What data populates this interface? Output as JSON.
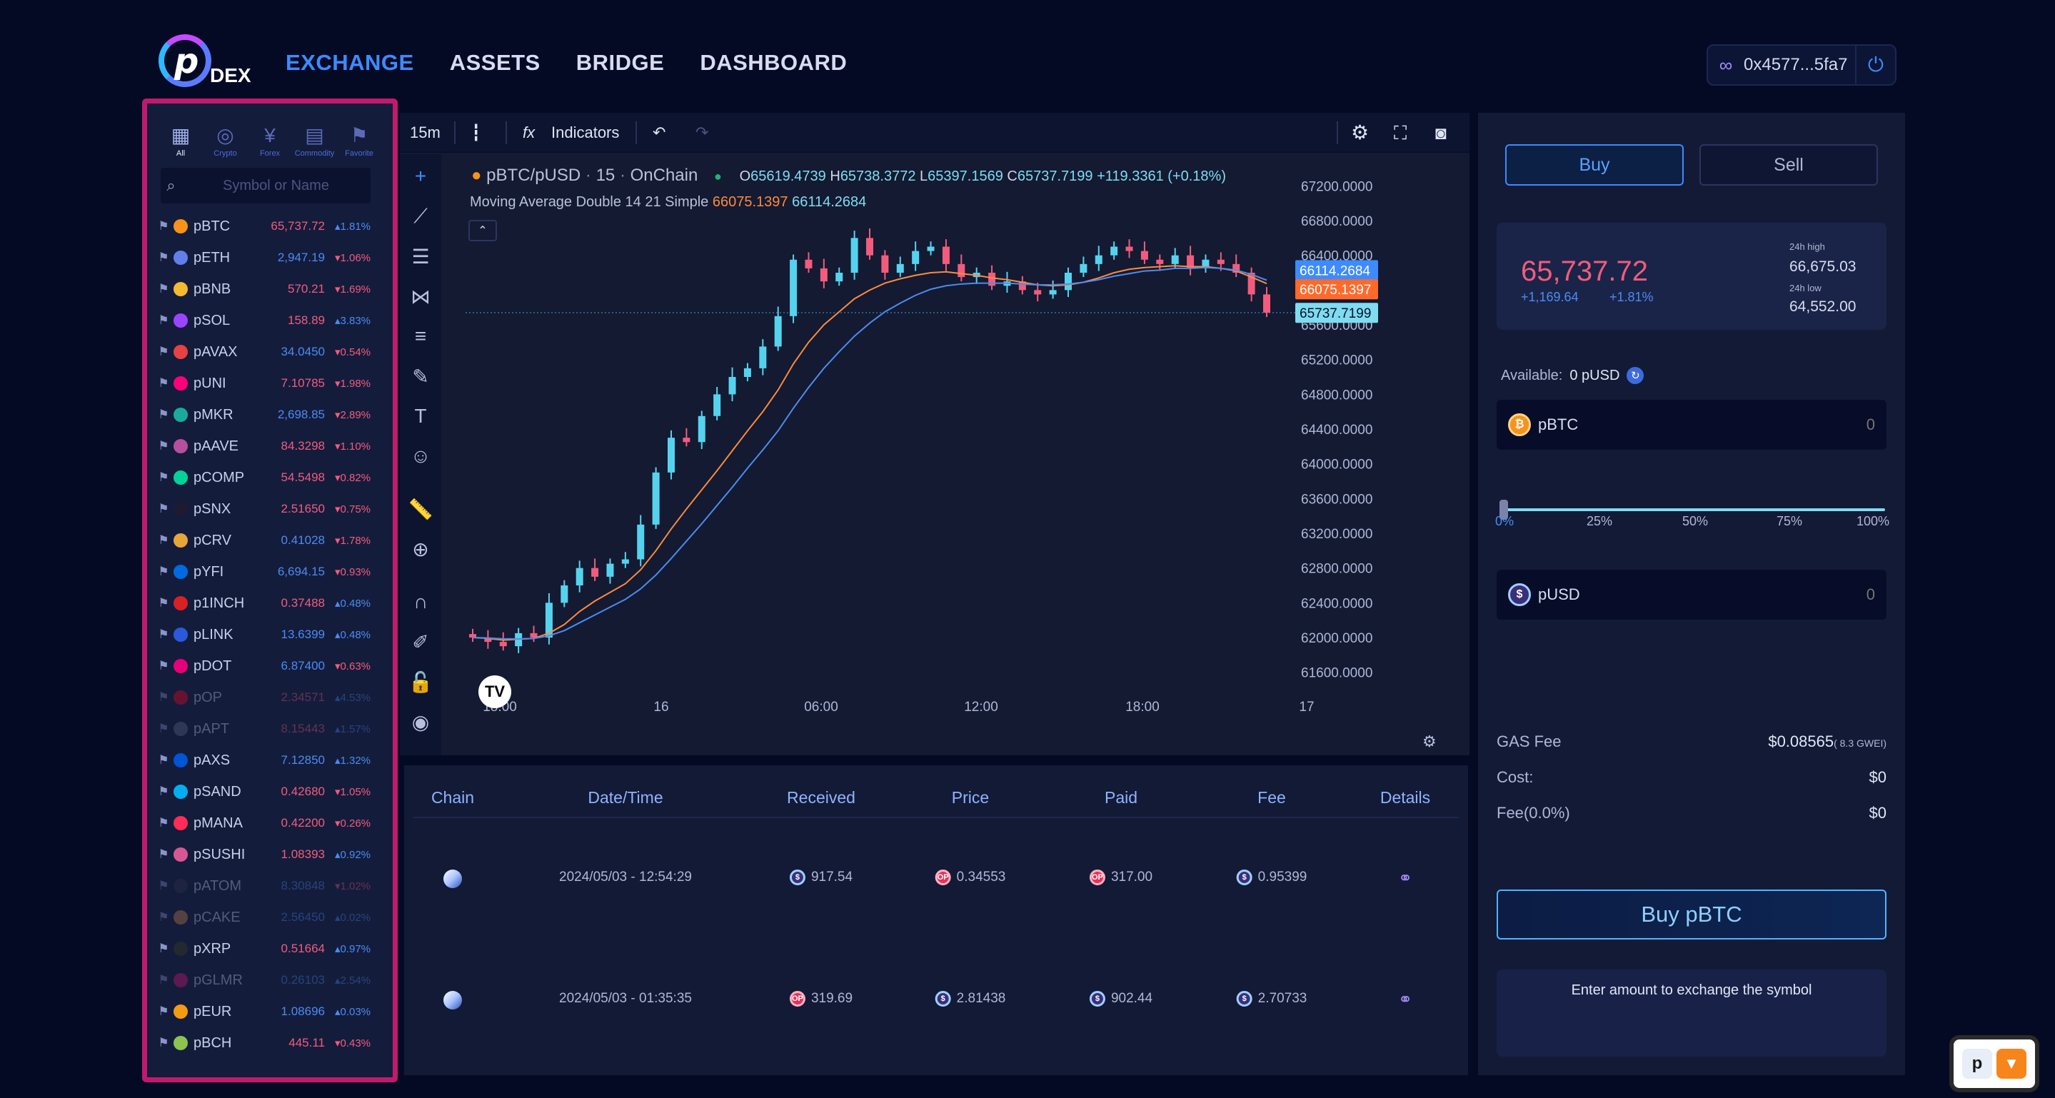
{
  "brand": {
    "logo_letter": "p",
    "logo_text": "DEX"
  },
  "nav": [
    {
      "label": "EXCHANGE",
      "active": true
    },
    {
      "label": "ASSETS",
      "active": false
    },
    {
      "label": "BRIDGE",
      "active": false
    },
    {
      "label": "DASHBOARD",
      "active": false
    }
  ],
  "wallet": {
    "address": "0x4577...5fa7",
    "icon": "link-icon",
    "power_icon": "power-icon"
  },
  "sidebar": {
    "categories": [
      {
        "label": "All",
        "icon": "grid-icon",
        "active": true
      },
      {
        "label": "Crypto",
        "icon": "coins-icon",
        "active": false
      },
      {
        "label": "Forex",
        "icon": "yen-icon",
        "active": false
      },
      {
        "label": "Commodity",
        "icon": "commodity-icon",
        "active": false
      },
      {
        "label": "Favorite",
        "icon": "bookmark-icon",
        "active": false
      }
    ],
    "search_placeholder": "Symbol or Name",
    "symbols": [
      {
        "name": "pBTC",
        "price": "65,737.72",
        "change": "▴1.81%",
        "price_color": "red",
        "change_color": "blue",
        "coin": "#f7931a",
        "dim": false
      },
      {
        "name": "pETH",
        "price": "2,947.19",
        "change": "▾1.06%",
        "price_color": "blue",
        "change_color": "red",
        "coin": "#627eea",
        "dim": false
      },
      {
        "name": "pBNB",
        "price": "570.21",
        "change": "▾1.69%",
        "price_color": "red",
        "change_color": "red",
        "coin": "#f3ba2f",
        "dim": false
      },
      {
        "name": "pSOL",
        "price": "158.89",
        "change": "▴3.83%",
        "price_color": "red",
        "change_color": "blue",
        "coin": "#9945ff",
        "dim": false
      },
      {
        "name": "pAVAX",
        "price": "34.0450",
        "change": "▾0.54%",
        "price_color": "blue",
        "change_color": "red",
        "coin": "#e84142",
        "dim": false
      },
      {
        "name": "pUNI",
        "price": "7.10785",
        "change": "▾1.98%",
        "price_color": "red",
        "change_color": "red",
        "coin": "#ff007a",
        "dim": false
      },
      {
        "name": "pMKR",
        "price": "2,698.85",
        "change": "▾2.89%",
        "price_color": "blue",
        "change_color": "red",
        "coin": "#1aab9b",
        "dim": false
      },
      {
        "name": "pAAVE",
        "price": "84.3298",
        "change": "▾1.10%",
        "price_color": "red",
        "change_color": "red",
        "coin": "#b6509e",
        "dim": false
      },
      {
        "name": "pCOMP",
        "price": "54.5498",
        "change": "▾0.82%",
        "price_color": "red",
        "change_color": "red",
        "coin": "#00d395",
        "dim": false
      },
      {
        "name": "pSNX",
        "price": "2.51650",
        "change": "▾0.75%",
        "price_color": "red",
        "change_color": "red",
        "coin": "#1e1a31",
        "dim": false
      },
      {
        "name": "pCRV",
        "price": "0.41028",
        "change": "▾1.78%",
        "price_color": "blue",
        "change_color": "red",
        "coin": "#e5a63a",
        "dim": false
      },
      {
        "name": "pYFI",
        "price": "6,694.15",
        "change": "▾0.93%",
        "price_color": "blue",
        "change_color": "red",
        "coin": "#006ae3",
        "dim": false
      },
      {
        "name": "p1INCH",
        "price": "0.37488",
        "change": "▴0.48%",
        "price_color": "red",
        "change_color": "blue",
        "coin": "#d82122",
        "dim": false
      },
      {
        "name": "pLINK",
        "price": "13.6399",
        "change": "▴0.48%",
        "price_color": "blue",
        "change_color": "blue",
        "coin": "#2a5ada",
        "dim": false
      },
      {
        "name": "pDOT",
        "price": "6.87400",
        "change": "▾0.63%",
        "price_color": "blue",
        "change_color": "red",
        "coin": "#e6007a",
        "dim": false
      },
      {
        "name": "pOP",
        "price": "2.34571",
        "change": "▴4.53%",
        "price_color": "red",
        "change_color": "blue",
        "coin": "#ff0420",
        "dim": true
      },
      {
        "name": "pAPT",
        "price": "8.15443",
        "change": "▴1.57%",
        "price_color": "red",
        "change_color": "blue",
        "coin": "#5d6d8a",
        "dim": true
      },
      {
        "name": "pAXS",
        "price": "7.12850",
        "change": "▴1.32%",
        "price_color": "blue",
        "change_color": "blue",
        "coin": "#0055d5",
        "dim": false
      },
      {
        "name": "pSAND",
        "price": "0.42680",
        "change": "▾1.05%",
        "price_color": "red",
        "change_color": "red",
        "coin": "#04adef",
        "dim": false
      },
      {
        "name": "pMANA",
        "price": "0.42200",
        "change": "▾0.26%",
        "price_color": "red",
        "change_color": "red",
        "coin": "#ff2d55",
        "dim": false
      },
      {
        "name": "pSUSHI",
        "price": "1.08393",
        "change": "▴0.92%",
        "price_color": "red",
        "change_color": "blue",
        "coin": "#d65892",
        "dim": false
      },
      {
        "name": "pATOM",
        "price": "8.30848",
        "change": "▾1.02%",
        "price_color": "blue",
        "change_color": "red",
        "coin": "#2e3148",
        "dim": true
      },
      {
        "name": "pCAKE",
        "price": "2.56450",
        "change": "▴0.02%",
        "price_color": "blue",
        "change_color": "blue",
        "coin": "#d1884f",
        "dim": true
      },
      {
        "name": "pXRP",
        "price": "0.51664",
        "change": "▴0.97%",
        "price_color": "red",
        "change_color": "blue",
        "coin": "#23292f",
        "dim": false
      },
      {
        "name": "pGLMR",
        "price": "0.26103",
        "change": "▴2.54%",
        "price_color": "blue",
        "change_color": "blue",
        "coin": "#e1147b",
        "dim": true
      },
      {
        "name": "pEUR",
        "price": "1.08696",
        "change": "▴0.03%",
        "price_color": "blue",
        "change_color": "blue",
        "coin": "#f39c12",
        "dim": false
      },
      {
        "name": "pBCH",
        "price": "445.11",
        "change": "▾0.43%",
        "price_color": "red",
        "change_color": "red",
        "coin": "#8dc351",
        "dim": false
      }
    ]
  },
  "chart_toolbar": {
    "interval": "15m",
    "indicators": "Indicators"
  },
  "chart_legend": {
    "symbol": "pBTC/pUSD",
    "interval": "15",
    "source": "OnChain",
    "open_label": "O",
    "open": "65619.4739",
    "high_label": "H",
    "high": "65738.3772",
    "low_label": "L",
    "low": "65397.1569",
    "close_label": "C",
    "close": "65737.7199",
    "change": "+119.3361 (+0.18%)",
    "ma_name": "Moving Average Double 14 21 Simple",
    "ma_value_a": "66075.1397",
    "ma_value_b": "66114.2684"
  },
  "chart_data": {
    "type": "line",
    "title": "",
    "x_tick_labels": [
      "18:00",
      "16",
      "06:00",
      "12:00",
      "18:00",
      "17"
    ],
    "y_tick_labels": [
      "67200.0000",
      "66800.0000",
      "66400.0000",
      "66000.0000",
      "65600.0000",
      "65200.0000",
      "64800.0000",
      "64400.0000",
      "64000.0000",
      "63600.0000",
      "63200.0000",
      "62800.0000",
      "62400.0000",
      "62000.0000",
      "61600.0000"
    ],
    "ylim": [
      61400,
      67400
    ],
    "price_labels": [
      "66114.2684",
      "66075.1397",
      "65737.7199"
    ],
    "series": [
      {
        "name": "",
        "color": "#55d3ee",
        "values": [
          62000,
          61950,
          61900,
          62050,
          62000,
          62400,
          62600,
          62800,
          62700,
          62850,
          62900,
          63300,
          63900,
          64300,
          64250,
          64550,
          64800,
          65000,
          65100,
          65350,
          65700,
          66350,
          66250,
          66100,
          66200,
          66600,
          66400,
          66200,
          66300,
          66450,
          66500,
          66300,
          66150,
          66200,
          66050,
          66100,
          66000,
          65950,
          66000,
          66200,
          66300,
          66400,
          66500,
          66450,
          66350,
          66300,
          66400,
          66250,
          66350,
          66300,
          66200,
          65950,
          65740
        ]
      },
      {
        "name": "",
        "color": "#ff8a3d",
        "values": [
          62000,
          61990,
          61970,
          61980,
          61990,
          62050,
          62150,
          62300,
          62420,
          62520,
          62620,
          62780,
          63000,
          63250,
          63480,
          63700,
          63920,
          64150,
          64380,
          64600,
          64850,
          65150,
          65400,
          65600,
          65750,
          65900,
          66000,
          66080,
          66130,
          66170,
          66200,
          66210,
          66190,
          66170,
          66140,
          66120,
          66090,
          66060,
          66050,
          66060,
          66090,
          66140,
          66200,
          66240,
          66260,
          66270,
          66280,
          66270,
          66270,
          66250,
          66220,
          66150,
          66075
        ]
      },
      {
        "name": "",
        "color": "#4b8cf0",
        "values": [
          62000,
          61995,
          61985,
          61985,
          61990,
          62020,
          62080,
          62170,
          62260,
          62350,
          62440,
          62560,
          62720,
          62910,
          63110,
          63310,
          63520,
          63730,
          63950,
          64160,
          64380,
          64640,
          64880,
          65100,
          65290,
          65470,
          65620,
          65750,
          65850,
          65940,
          66010,
          66050,
          66070,
          66080,
          66080,
          66080,
          66070,
          66060,
          66060,
          66070,
          66090,
          66120,
          66160,
          66190,
          66220,
          66230,
          66250,
          66250,
          66260,
          66250,
          66230,
          66180,
          66114
        ]
      }
    ],
    "grid": false
  },
  "trades": {
    "columns": [
      "Chain",
      "Date/Time",
      "Received",
      "Price",
      "Paid",
      "Fee",
      "Details"
    ],
    "rows": [
      {
        "datetime": "2024/05/03 - 12:54:29",
        "received": "917.54",
        "received_token": "pusd",
        "price": "0.34553",
        "price_token": "op",
        "paid": "317.00",
        "paid_token": "op",
        "fee": "0.95399",
        "fee_token": "pusd"
      },
      {
        "datetime": "2024/05/03 - 01:35:35",
        "received": "319.69",
        "received_token": "op",
        "price": "2.81438",
        "price_token": "pusd",
        "paid": "902.44",
        "paid_token": "pusd",
        "fee": "2.70733",
        "fee_token": "pusd"
      }
    ]
  },
  "trade_panel": {
    "buy_tab": "Buy",
    "sell_tab": "Sell",
    "price": "65,737.72",
    "change_abs": "+1,169.64",
    "change_pct": "+1.81%",
    "high_label": "24h high",
    "high": "66,675.03",
    "low_label": "24h low",
    "low": "64,552.00",
    "available_label": "Available:",
    "available": "0 pUSD",
    "from_asset": "pBTC",
    "from_value": "0",
    "to_asset": "pUSD",
    "to_value": "0",
    "slider_percent": 0,
    "percent_marks": [
      "0%",
      "25%",
      "50%",
      "75%",
      "100%"
    ],
    "gas_label": "GAS Fee",
    "gas_value": "$0.08565",
    "gas_gwei": "( 8.3 GWEI)",
    "cost_label": "Cost:",
    "cost_value": "$0",
    "fee_label": "Fee(0.0%)",
    "fee_value": "$0",
    "buy_button": "Buy pBTC",
    "message": "Enter amount to exchange the symbol"
  },
  "colors": {
    "accent": "#3d8bff",
    "down": "#f25c7c",
    "up": "#4b8cf0",
    "highlight_frame": "#c01a6e"
  }
}
